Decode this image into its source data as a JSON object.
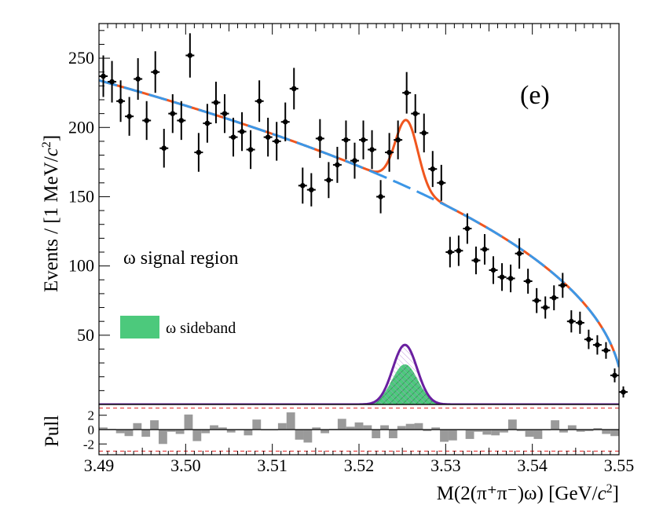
{
  "chart_data": [
    {
      "type": "scatter",
      "panel": "main",
      "label": "(e)",
      "annotation": "ω signal region",
      "xlim": [
        3.49,
        3.55
      ],
      "ylim": [
        0,
        275
      ],
      "ylabel_prefix": "Events / [1 MeV/",
      "ylabel_c": "c",
      "ylabel_sup": "2",
      "ylabel_suffix": "]",
      "yticks": [
        50,
        100,
        150,
        200,
        250
      ],
      "legend": [
        {
          "name": "ω sideband",
          "color": "#4cc97c"
        }
      ],
      "colors": {
        "data": "#000000",
        "total_fit": "#f0561e",
        "background": "#3c96e6",
        "signal": "#6a1fa0",
        "sideband": "#4cc97c"
      },
      "data_points": {
        "x": [
          3.4905,
          3.4915,
          3.4925,
          3.4935,
          3.4945,
          3.4955,
          3.4965,
          3.4975,
          3.4985,
          3.4995,
          3.5005,
          3.5015,
          3.5025,
          3.5035,
          3.5045,
          3.5055,
          3.5065,
          3.5075,
          3.5085,
          3.5095,
          3.5105,
          3.5115,
          3.5125,
          3.5135,
          3.5145,
          3.5155,
          3.5165,
          3.5175,
          3.5185,
          3.5195,
          3.5205,
          3.5215,
          3.5225,
          3.5235,
          3.5245,
          3.5255,
          3.5265,
          3.5275,
          3.5285,
          3.5295,
          3.5305,
          3.5315,
          3.5325,
          3.5335,
          3.5345,
          3.5355,
          3.5365,
          3.5375,
          3.5385,
          3.5395,
          3.5405,
          3.5415,
          3.5425,
          3.5435,
          3.5445,
          3.5455,
          3.5465,
          3.5475,
          3.5485,
          3.5495,
          3.5505
        ],
        "y": [
          237,
          233,
          219,
          208,
          235,
          205,
          240,
          185,
          210,
          205,
          252,
          182,
          203,
          218,
          210,
          193,
          197,
          184,
          219,
          193,
          190,
          204,
          228,
          158,
          155,
          192,
          162,
          173,
          191,
          176,
          191,
          184,
          150,
          182,
          191,
          225,
          210,
          196,
          170,
          160,
          110,
          111,
          127,
          104,
          112,
          97,
          92,
          91,
          109,
          89,
          75,
          70,
          77,
          86,
          60,
          59,
          47,
          43,
          39,
          21,
          9
        ],
        "err": [
          15,
          15,
          15,
          14,
          15,
          14,
          15,
          14,
          14,
          14,
          16,
          14,
          14,
          15,
          14,
          14,
          14,
          14,
          15,
          14,
          14,
          14,
          15,
          13,
          12,
          14,
          13,
          13,
          14,
          13,
          14,
          14,
          12,
          14,
          14,
          15,
          14,
          14,
          13,
          13,
          11,
          11,
          11,
          10,
          11,
          10,
          10,
          10,
          11,
          9,
          9,
          8,
          9,
          9,
          8,
          8,
          7,
          7,
          6,
          5,
          4
        ]
      },
      "series": [
        {
          "name": "total fit",
          "style": "solid",
          "params": {
            "bkg_amp": 234,
            "bkg_end": 3.5505,
            "bkg_power": 0.45,
            "peak_amp": 48,
            "peak_mean": 3.5255,
            "peak_sigma": 0.0013
          }
        },
        {
          "name": "background",
          "style": "dashed"
        },
        {
          "name": "signal",
          "style": "solid",
          "params": {
            "amp": 43,
            "mean": 3.5253,
            "sigma": 0.0014
          }
        },
        {
          "name": "ω sideband",
          "style": "filled-hatched",
          "params": {
            "amp": 29,
            "mean": 3.5253,
            "sigma": 0.0015
          }
        }
      ]
    },
    {
      "type": "bar",
      "panel": "pull",
      "ylabel": "Pull",
      "xlabel_text": "M(2(π⁺π⁻)ω) [GeV/",
      "xlabel_c": "c",
      "xlabel_sup": "2",
      "xlabel_suffix": "]",
      "xticks": [
        3.49,
        3.5,
        3.51,
        3.52,
        3.53,
        3.54,
        3.55
      ],
      "xtick_labels": [
        "3.49",
        "3.50",
        "3.51",
        "3.52",
        "3.53",
        "3.54",
        "3.55"
      ],
      "ylim": [
        -3.5,
        3.5
      ],
      "yticks": [
        2,
        0,
        -2
      ],
      "ytick_labels": [
        "2",
        "0",
        "-2"
      ],
      "reference_lines": [
        3,
        -3
      ],
      "values": [
        0.3,
        0.1,
        -0.5,
        -0.9,
        0.9,
        -1.0,
        1.3,
        -2.0,
        -0.3,
        -0.6,
        2.1,
        -1.6,
        -0.5,
        0.6,
        0.3,
        -0.4,
        -0.1,
        -0.8,
        1.4,
        -0.1,
        -0.1,
        0.9,
        2.4,
        -1.4,
        -1.8,
        0.3,
        -0.5,
        0.1,
        1.5,
        0.4,
        1.0,
        0.6,
        -1.2,
        0.6,
        -1.2,
        0.5,
        0.8,
        0.9,
        -0.2,
        0.3,
        -1.7,
        -1.5,
        -0.1,
        -1.3,
        -0.3,
        -0.7,
        -0.8,
        -0.4,
        1.4,
        -0.2,
        -1.0,
        -1.3,
        -0.1,
        1.3,
        -0.4,
        0.6,
        -0.3,
        -0.2,
        0.2,
        -0.6,
        -0.9
      ]
    }
  ]
}
